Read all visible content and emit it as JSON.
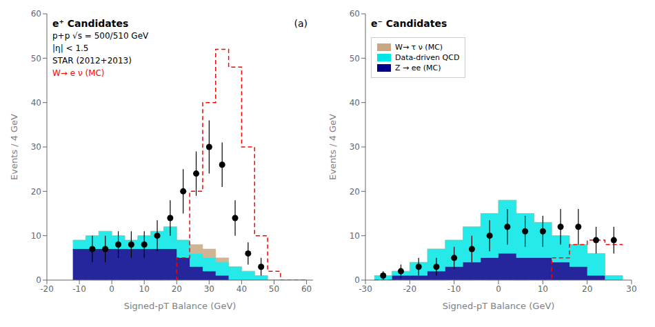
{
  "chart_data": [
    {
      "type": "histogram",
      "title": "(a)",
      "xlabel": "Signed-pT Balance (GeV)",
      "ylabel": "Events / 4 GeV",
      "xlim": [
        -20,
        62
      ],
      "xticks": [
        -20,
        -10,
        0,
        10,
        20,
        30,
        40,
        50,
        60
      ],
      "ylim": [
        0,
        60
      ],
      "yticks": [
        0,
        10,
        20,
        30,
        40,
        50,
        60
      ],
      "stacked": true,
      "bins": [
        -12,
        -8,
        -4,
        0,
        4,
        8,
        12,
        16,
        20,
        24,
        28,
        32,
        36,
        40,
        44,
        48,
        52,
        56,
        60
      ],
      "series": [
        {
          "type": "bar",
          "color": "#00008B",
          "values": [
            7,
            7,
            7,
            7,
            7,
            7,
            7,
            7,
            5,
            3,
            2,
            1,
            0,
            0,
            0,
            0,
            0,
            0
          ]
        },
        {
          "type": "bar",
          "color": "#00E5E5",
          "values": [
            2,
            3,
            4,
            3,
            2,
            3,
            4,
            5,
            4,
            3,
            3,
            3,
            3,
            2,
            1,
            0,
            0,
            0
          ]
        },
        {
          "type": "bar",
          "color": "#C8A882",
          "values": [
            0,
            0,
            0,
            0,
            0,
            0,
            0,
            0,
            0,
            2,
            2,
            1,
            0,
            0,
            0,
            0,
            0,
            0
          ]
        },
        {
          "type": "step",
          "color": "#FF0000",
          "line_style": "dashed",
          "values": [
            0,
            0,
            0,
            0,
            0,
            0,
            0,
            0,
            5,
            20,
            40,
            52,
            48,
            30,
            10,
            2,
            0,
            0
          ]
        },
        {
          "type": "scatter",
          "color": "#000000",
          "marker": "circle",
          "x": [
            -6,
            -2,
            2,
            6,
            10,
            14,
            18,
            22,
            26,
            30,
            34,
            38,
            42,
            46
          ],
          "values": [
            7,
            7,
            8,
            8,
            8,
            10,
            14,
            20,
            24,
            30,
            26,
            14,
            6,
            3
          ],
          "errors": [
            3,
            3,
            3,
            3,
            3,
            3.5,
            4,
            5,
            5,
            6,
            5,
            4,
            2.5,
            2
          ]
        }
      ],
      "annotations": [
        {
          "text": "e⁺ Candidates",
          "color": "black"
        },
        {
          "text": "p+p √s = 500/510 GeV",
          "color": "black"
        },
        {
          "text": "|η| < 1.5",
          "color": "black"
        },
        {
          "text": "STAR (2012+2013)",
          "color": "black"
        },
        {
          "text": "W→ e ν (MC)",
          "color": "red"
        }
      ]
    },
    {
      "type": "histogram",
      "xlabel": "Signed-pT Balance (GeV)",
      "ylabel": "Events / 4 GeV",
      "xlim": [
        -30,
        30
      ],
      "xticks": [
        -30,
        -20,
        -10,
        0,
        10,
        20,
        30
      ],
      "ylim": [
        0,
        60
      ],
      "yticks": [
        0,
        10,
        20,
        30,
        40,
        50,
        60
      ],
      "stacked": true,
      "legend": "upper left",
      "bins": [
        -28,
        -24,
        -20,
        -16,
        -12,
        -8,
        -4,
        0,
        4,
        8,
        12,
        16,
        20,
        24,
        28
      ],
      "series": [
        {
          "type": "bar",
          "name": "Z → ee (MC)",
          "color": "#00008B",
          "values": [
            0,
            1,
            1,
            2,
            3,
            4,
            5,
            6,
            5,
            5,
            4,
            3,
            1,
            0
          ]
        },
        {
          "type": "bar",
          "name": "Data-driven QCD",
          "color": "#00E5E5",
          "values": [
            1,
            1,
            3,
            5,
            6,
            8,
            10,
            12,
            10,
            8,
            6,
            5,
            5,
            1
          ]
        },
        {
          "type": "bar",
          "name": "W→ τ ν (MC)",
          "color": "#C8A882",
          "values": [
            0,
            0,
            0,
            0,
            0,
            0,
            0,
            0,
            0,
            0,
            0,
            0,
            0,
            0
          ]
        },
        {
          "type": "step",
          "color": "#FF0000",
          "line_style": "dashed",
          "values": [
            0,
            0,
            0,
            0,
            0,
            0,
            0,
            0,
            0,
            0,
            5,
            8,
            9,
            8
          ]
        },
        {
          "type": "scatter",
          "color": "#000000",
          "marker": "circle",
          "x": [
            -26,
            -22,
            -18,
            -14,
            -10,
            -6,
            -2,
            2,
            6,
            10,
            14,
            18,
            22,
            26
          ],
          "values": [
            1,
            2,
            3,
            3,
            5,
            7,
            10,
            12,
            11,
            11,
            12,
            12,
            9,
            9
          ],
          "errors": [
            1,
            1.5,
            2,
            2,
            2.5,
            3,
            3.5,
            4,
            3.5,
            3.5,
            4,
            4,
            3,
            3
          ]
        }
      ],
      "annotations": [
        {
          "text": "e⁻ Candidates",
          "color": "black"
        }
      ]
    }
  ]
}
